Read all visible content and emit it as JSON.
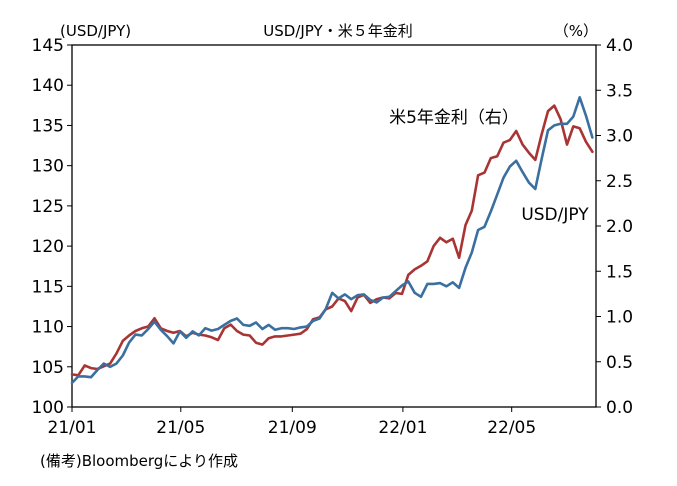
{
  "chart_data": {
    "type": "line",
    "title": "USD/JPY・米５年金利",
    "left_unit": "(USD/JPY)",
    "right_unit": "（%）",
    "x_tick_labels": [
      "21/01",
      "21/05",
      "21/09",
      "22/01",
      "22/05"
    ],
    "y_left_ticks": [
      "100",
      "105",
      "110",
      "115",
      "120",
      "125",
      "130",
      "135",
      "140",
      "145"
    ],
    "y_right_ticks": [
      "0.0",
      "0.5",
      "1.0",
      "1.5",
      "2.0",
      "2.5",
      "3.0",
      "3.5",
      "4.0"
    ],
    "ylim_left": [
      100,
      145
    ],
    "ylim_right": [
      0,
      4
    ],
    "grid": false,
    "series": [
      {
        "name": "USD/JPY",
        "axis": "left",
        "color": "#3a6fa0",
        "x": [
          "2021-01-01",
          "2021-01-08",
          "2021-01-15",
          "2021-01-22",
          "2021-01-29",
          "2021-02-05",
          "2021-02-12",
          "2021-02-19",
          "2021-02-26",
          "2021-03-05",
          "2021-03-12",
          "2021-03-19",
          "2021-03-26",
          "2021-04-02",
          "2021-04-09",
          "2021-04-16",
          "2021-04-23",
          "2021-04-30",
          "2021-05-07",
          "2021-05-14",
          "2021-05-21",
          "2021-05-28",
          "2021-06-04",
          "2021-06-11",
          "2021-06-18",
          "2021-06-25",
          "2021-07-02",
          "2021-07-09",
          "2021-07-16",
          "2021-07-23",
          "2021-07-30",
          "2021-08-06",
          "2021-08-13",
          "2021-08-20",
          "2021-08-27",
          "2021-09-03",
          "2021-09-10",
          "2021-09-17",
          "2021-09-24",
          "2021-10-01",
          "2021-10-08",
          "2021-10-15",
          "2021-10-22",
          "2021-10-29",
          "2021-11-05",
          "2021-11-12",
          "2021-11-19",
          "2021-11-26",
          "2021-12-03",
          "2021-12-10",
          "2021-12-17",
          "2021-12-24",
          "2021-12-31",
          "2022-01-07",
          "2022-01-14",
          "2022-01-21",
          "2022-01-28",
          "2022-02-04",
          "2022-02-11",
          "2022-02-18",
          "2022-02-25",
          "2022-03-04",
          "2022-03-11",
          "2022-03-18",
          "2022-03-25",
          "2022-04-01",
          "2022-04-08",
          "2022-04-15",
          "2022-04-22",
          "2022-04-29",
          "2022-05-06",
          "2022-05-13",
          "2022-05-20",
          "2022-05-27",
          "2022-06-03",
          "2022-06-10",
          "2022-06-17",
          "2022-06-24",
          "2022-07-01",
          "2022-07-08",
          "2022-07-15",
          "2022-07-22",
          "2022-07-29"
        ],
        "values": [
          103.0,
          103.8,
          103.8,
          103.7,
          104.6,
          105.4,
          105.0,
          105.4,
          106.4,
          108.0,
          109.0,
          108.9,
          109.7,
          110.6,
          109.6,
          108.8,
          107.9,
          109.4,
          108.6,
          109.4,
          108.9,
          109.8,
          109.5,
          109.7,
          110.2,
          110.7,
          111.0,
          110.2,
          110.1,
          110.5,
          109.7,
          110.2,
          109.6,
          109.8,
          109.8,
          109.7,
          109.9,
          110.0,
          110.7,
          111.0,
          112.2,
          114.2,
          113.5,
          114.0,
          113.4,
          113.9,
          114.0,
          113.3,
          113.0,
          113.6,
          113.7,
          114.4,
          115.1,
          115.6,
          114.2,
          113.7,
          115.3,
          115.3,
          115.4,
          115.0,
          115.5,
          114.8,
          117.3,
          119.2,
          122.0,
          122.4,
          124.3,
          126.4,
          128.5,
          129.9,
          130.6,
          129.2,
          127.9,
          127.1,
          130.8,
          134.4,
          135.0,
          135.2,
          135.2,
          136.1,
          138.5,
          136.2,
          133.5
        ]
      },
      {
        "name": "米5年金利（右）",
        "axis": "right",
        "color": "#a93434",
        "x": [
          "2021-01-01",
          "2021-01-08",
          "2021-01-15",
          "2021-01-22",
          "2021-01-29",
          "2021-02-05",
          "2021-02-12",
          "2021-02-19",
          "2021-02-26",
          "2021-03-05",
          "2021-03-12",
          "2021-03-19",
          "2021-03-26",
          "2021-04-02",
          "2021-04-09",
          "2021-04-16",
          "2021-04-23",
          "2021-04-30",
          "2021-05-07",
          "2021-05-14",
          "2021-05-21",
          "2021-05-28",
          "2021-06-04",
          "2021-06-11",
          "2021-06-18",
          "2021-06-25",
          "2021-07-02",
          "2021-07-09",
          "2021-07-16",
          "2021-07-23",
          "2021-07-30",
          "2021-08-06",
          "2021-08-13",
          "2021-08-20",
          "2021-08-27",
          "2021-09-03",
          "2021-09-10",
          "2021-09-17",
          "2021-09-24",
          "2021-10-01",
          "2021-10-08",
          "2021-10-15",
          "2021-10-22",
          "2021-10-29",
          "2021-11-05",
          "2021-11-12",
          "2021-11-19",
          "2021-11-26",
          "2021-12-03",
          "2021-12-10",
          "2021-12-17",
          "2021-12-24",
          "2021-12-31",
          "2022-01-07",
          "2022-01-14",
          "2022-01-21",
          "2022-01-28",
          "2022-02-04",
          "2022-02-11",
          "2022-02-18",
          "2022-02-25",
          "2022-03-04",
          "2022-03-11",
          "2022-03-18",
          "2022-03-25",
          "2022-04-01",
          "2022-04-08",
          "2022-04-15",
          "2022-04-22",
          "2022-04-29",
          "2022-05-06",
          "2022-05-13",
          "2022-05-20",
          "2022-05-27",
          "2022-06-03",
          "2022-06-10",
          "2022-06-17",
          "2022-06-24",
          "2022-07-01",
          "2022-07-08",
          "2022-07-15",
          "2022-07-22",
          "2022-07-29"
        ],
        "values": [
          0.36,
          0.35,
          0.46,
          0.43,
          0.42,
          0.45,
          0.48,
          0.59,
          0.73,
          0.79,
          0.84,
          0.87,
          0.89,
          0.98,
          0.87,
          0.84,
          0.82,
          0.84,
          0.78,
          0.82,
          0.8,
          0.79,
          0.77,
          0.74,
          0.87,
          0.91,
          0.84,
          0.8,
          0.79,
          0.71,
          0.69,
          0.76,
          0.78,
          0.78,
          0.79,
          0.8,
          0.81,
          0.86,
          0.97,
          0.99,
          1.08,
          1.11,
          1.2,
          1.17,
          1.06,
          1.21,
          1.24,
          1.15,
          1.19,
          1.21,
          1.2,
          1.26,
          1.25,
          1.46,
          1.52,
          1.56,
          1.61,
          1.78,
          1.87,
          1.82,
          1.86,
          1.65,
          2.01,
          2.17,
          2.56,
          2.59,
          2.75,
          2.77,
          2.92,
          2.95,
          3.05,
          2.9,
          2.81,
          2.73,
          3.01,
          3.27,
          3.33,
          3.18,
          2.9,
          3.1,
          3.08,
          2.93,
          2.82
        ]
      }
    ],
    "annotations": [
      {
        "text": "米5年金利（右）",
        "color": "#a93434"
      },
      {
        "text": "USD/JPY",
        "color": "#3a6fa0"
      }
    ]
  },
  "footnote": "(備考)Bloombergにより作成"
}
